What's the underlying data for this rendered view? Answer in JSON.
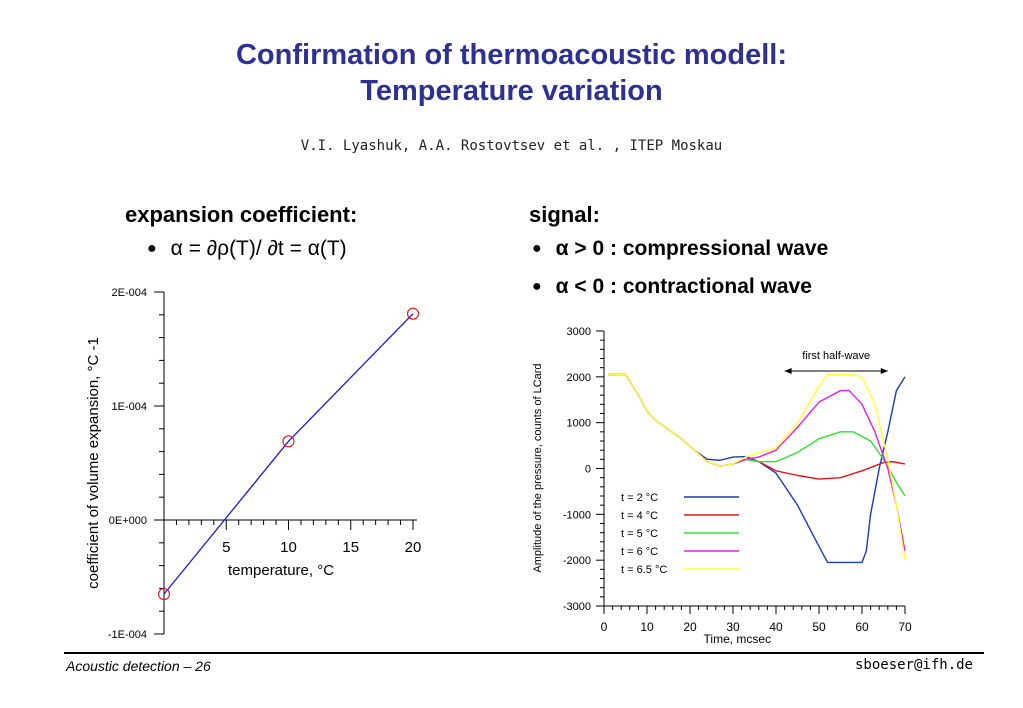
{
  "header": {
    "title_line1": "Confirmation of thermoacoustic modell:",
    "title_line2": "Temperature variation",
    "authors": "V.I. Lyashuk, A.A. Rostovtsev et al. , ITEP Moskau"
  },
  "left": {
    "heading": "expansion coefficient:",
    "bullet": "α = ∂ρ(T)/ ∂t = α(T)"
  },
  "right": {
    "heading": "signal:",
    "bullets": [
      "α > 0 : compressional wave",
      "α < 0 : contractional wave"
    ]
  },
  "footer": {
    "left": "Acoustic detection – 26",
    "right": "sboeser@ifh.de"
  },
  "chart_data": [
    {
      "type": "scatter",
      "title": "",
      "xlabel": "temperature, °C",
      "ylabel": "coefficient of volume expansion, °C -1",
      "x_ticks": [
        "5",
        "10",
        "15",
        "20"
      ],
      "y_ticks": [
        "2E-004",
        "1E-004",
        "0E+000",
        "-1E-004"
      ],
      "xlim": [
        0,
        20
      ],
      "ylim": [
        -0.0001,
        0.0002
      ],
      "points": [
        {
          "x": 0,
          "y": -6.5e-05
        },
        {
          "x": 10,
          "y": 6.9e-05
        },
        {
          "x": 20,
          "y": 0.000181
        }
      ],
      "fit_line": [
        {
          "x": 0,
          "y": -6.5e-05
        },
        {
          "x": 10,
          "y": 6.9e-05
        },
        {
          "x": 20,
          "y": 0.000181
        }
      ],
      "colors": {
        "points": "#e8141c",
        "line": "#1a1adc"
      }
    },
    {
      "type": "line",
      "title": "",
      "xlabel": "Time,  mcsec",
      "ylabel": "Amplitude of the pressure, counts of LCard",
      "x_ticks": [
        "0",
        "10",
        "20",
        "30",
        "40",
        "50",
        "60",
        "70"
      ],
      "y_ticks": [
        "3000",
        "2000",
        "1000",
        "0",
        "-1000",
        "-2000",
        "-3000"
      ],
      "xlim": [
        0,
        70
      ],
      "ylim": [
        -3000,
        3000
      ],
      "annotation": "first half-wave",
      "annotation_range": [
        42,
        66
      ],
      "legend_position": "bottom-left",
      "series": [
        {
          "name": "t = 2 °C",
          "color": "#1a3bb5",
          "x": [
            1,
            5,
            6,
            8,
            10,
            12,
            15,
            18,
            21,
            24,
            27,
            30,
            33,
            36,
            40,
            45,
            50,
            52,
            56,
            58,
            60,
            61,
            62,
            64,
            66,
            68,
            70
          ],
          "y": [
            2050,
            2050,
            1900,
            1600,
            1250,
            1050,
            850,
            650,
            400,
            200,
            180,
            250,
            260,
            150,
            -100,
            -800,
            -1700,
            -2050,
            -2050,
            -2050,
            -2050,
            -1800,
            -1000,
            0,
            800,
            1700,
            2000
          ]
        },
        {
          "name": "t = 4 °C",
          "color": "#e3151c",
          "x": [
            1,
            5,
            6,
            8,
            10,
            12,
            15,
            18,
            21,
            24,
            27,
            30,
            33,
            36,
            40,
            45,
            50,
            55,
            60,
            65,
            67,
            70
          ],
          "y": [
            2050,
            2050,
            1900,
            1600,
            1250,
            1050,
            850,
            650,
            400,
            150,
            50,
            100,
            200,
            150,
            -50,
            -150,
            -230,
            -200,
            -50,
            130,
            150,
            100
          ]
        },
        {
          "name": "t = 5 °C",
          "color": "#2ee32e",
          "x": [
            1,
            5,
            6,
            8,
            10,
            12,
            15,
            18,
            21,
            24,
            27,
            30,
            33,
            36,
            40,
            45,
            50,
            55,
            58,
            62,
            65,
            68,
            70
          ],
          "y": [
            2050,
            2050,
            1900,
            1600,
            1250,
            1050,
            850,
            650,
            400,
            150,
            50,
            100,
            200,
            150,
            150,
            350,
            650,
            800,
            800,
            600,
            200,
            -300,
            -600
          ]
        },
        {
          "name": "t = 6 °C",
          "color": "#e41fe4",
          "x": [
            1,
            5,
            6,
            8,
            10,
            12,
            15,
            18,
            21,
            24,
            27,
            30,
            33,
            36,
            40,
            45,
            50,
            55,
            57,
            60,
            63,
            66,
            68,
            70
          ],
          "y": [
            2050,
            2050,
            1900,
            1600,
            1250,
            1050,
            850,
            650,
            400,
            150,
            50,
            100,
            200,
            250,
            400,
            900,
            1450,
            1700,
            1700,
            1400,
            800,
            0,
            -800,
            -1800
          ]
        },
        {
          "name": "t = 6.5 °C",
          "color": "#ffff33",
          "x": [
            1,
            5,
            6,
            8,
            10,
            12,
            15,
            18,
            21,
            24,
            27,
            30,
            33,
            36,
            40,
            45,
            50,
            52,
            54,
            58,
            60,
            63,
            66,
            68,
            70
          ],
          "y": [
            2050,
            2050,
            1900,
            1600,
            1250,
            1050,
            850,
            650,
            400,
            150,
            50,
            100,
            250,
            350,
            450,
            1000,
            1800,
            2050,
            2050,
            2050,
            2000,
            1400,
            200,
            -800,
            -2000
          ]
        }
      ]
    }
  ]
}
